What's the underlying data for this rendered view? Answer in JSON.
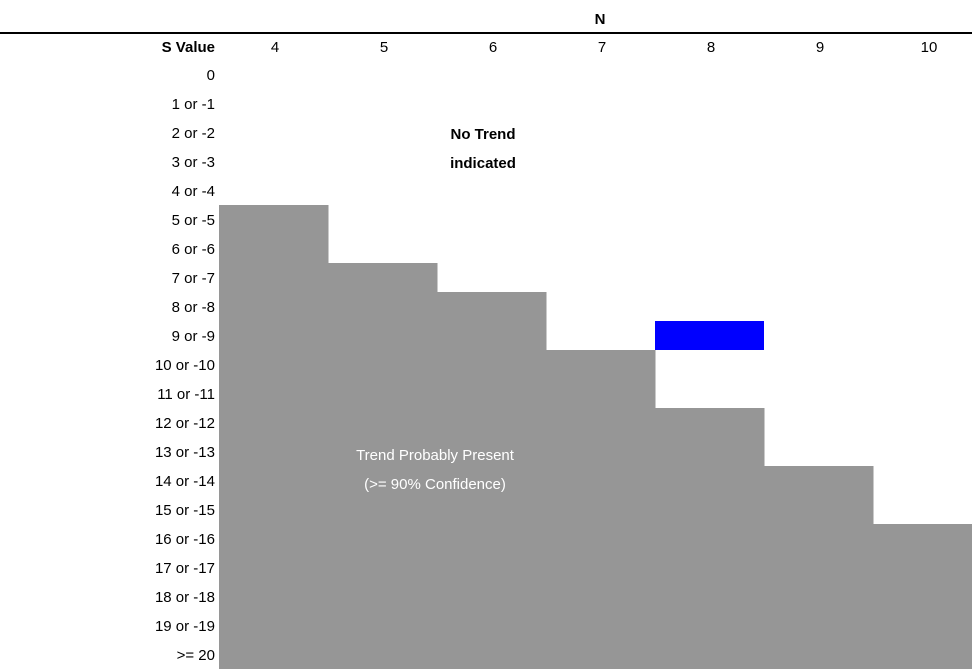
{
  "chart_data": {
    "type": "table",
    "title": "",
    "column_header": "N",
    "row_header": "S Value",
    "columns": [
      4,
      5,
      6,
      7,
      8,
      9,
      10
    ],
    "rows": [
      "0",
      "1 or -1",
      "2 or -2",
      "3 or -3",
      "4 or -4",
      "5 or -5",
      "6 or -6",
      "7 or -7",
      "8 or -8",
      "9 or -9",
      "10 or -10",
      "11 or -11",
      "12 or -12",
      "13 or -13",
      "14 or -14",
      "15 or -15",
      "16 or -16",
      "17 or -17",
      "18 or -18",
      "19 or -19",
      ">= 20"
    ],
    "trend_threshold_by_n": [
      {
        "n": 4,
        "min_abs_s": 5
      },
      {
        "n": 5,
        "min_abs_s": 7
      },
      {
        "n": 6,
        "min_abs_s": 8
      },
      {
        "n": 7,
        "min_abs_s": 10
      },
      {
        "n": 8,
        "min_abs_s": 12
      },
      {
        "n": 9,
        "min_abs_s": 14
      },
      {
        "n": 10,
        "min_abs_s": 16
      }
    ],
    "highlight": {
      "n": 8,
      "s": "9 or -9",
      "color": "#0000ff"
    },
    "regions": {
      "no_trend": {
        "label_lines": [
          "No Trend",
          "indicated"
        ]
      },
      "trend": {
        "label_lines": [
          "Trend Probably Present",
          "(>= 90% Confidence)"
        ],
        "color": "#969696"
      }
    }
  }
}
